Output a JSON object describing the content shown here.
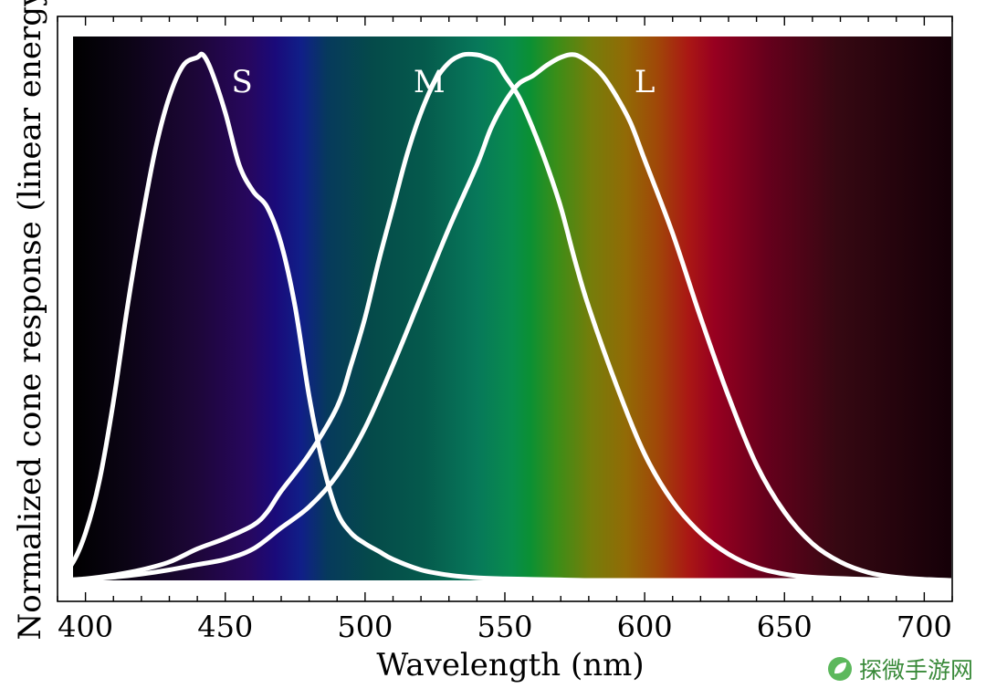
{
  "chart_data": {
    "type": "line",
    "title": "",
    "xlabel": "Wavelength (nm)",
    "ylabel": "Normalized cone response (linear energy)",
    "xlim": [
      390,
      710
    ],
    "ylim": [
      0,
      1
    ],
    "x_ticks": [
      400,
      450,
      500,
      550,
      600,
      650,
      700
    ],
    "x_tick_labels": [
      "400",
      "450",
      "500",
      "550",
      "600",
      "650",
      "700"
    ],
    "y_tick_labels": [],
    "grid": false,
    "legend": "none",
    "background": "visible spectrum gradient",
    "series": [
      {
        "name": "S",
        "label_position": {
          "x": 456,
          "y": 0.95
        },
        "x": [
          390,
          395,
          400,
          405,
          410,
          415,
          420,
          425,
          430,
          435,
          440,
          442,
          445,
          450,
          455,
          460,
          465,
          470,
          475,
          480,
          485,
          490,
          495,
          500,
          505,
          510,
          520,
          530,
          540,
          550,
          560,
          570,
          580,
          600,
          650,
          700,
          710
        ],
        "values": [
          0.01,
          0.03,
          0.09,
          0.19,
          0.34,
          0.52,
          0.68,
          0.82,
          0.92,
          0.98,
          0.995,
          1.0,
          0.97,
          0.89,
          0.79,
          0.74,
          0.71,
          0.64,
          0.52,
          0.35,
          0.22,
          0.13,
          0.09,
          0.07,
          0.055,
          0.04,
          0.02,
          0.01,
          0.005,
          0.003,
          0.002,
          0.001,
          0.0,
          0.0,
          0.0,
          0.0,
          0.0
        ]
      },
      {
        "name": "M",
        "label_position": {
          "x": 523,
          "y": 0.95
        },
        "x": [
          390,
          400,
          410,
          420,
          430,
          440,
          450,
          460,
          465,
          470,
          480,
          490,
          495,
          500,
          505,
          510,
          515,
          520,
          525,
          530,
          535,
          540,
          543,
          547,
          550,
          555,
          560,
          565,
          570,
          575,
          580,
          590,
          600,
          610,
          620,
          630,
          640,
          650,
          660,
          680,
          700,
          710
        ],
        "values": [
          0.0,
          0.003,
          0.01,
          0.02,
          0.035,
          0.06,
          0.08,
          0.105,
          0.13,
          0.17,
          0.24,
          0.33,
          0.41,
          0.5,
          0.61,
          0.71,
          0.81,
          0.89,
          0.95,
          0.985,
          1.0,
          1.0,
          0.995,
          0.985,
          0.96,
          0.92,
          0.86,
          0.79,
          0.71,
          0.61,
          0.52,
          0.37,
          0.24,
          0.15,
          0.09,
          0.05,
          0.025,
          0.012,
          0.006,
          0.002,
          0.001,
          0.0
        ]
      },
      {
        "name": "L",
        "label_position": {
          "x": 600,
          "y": 0.95
        },
        "x": [
          390,
          400,
          410,
          420,
          430,
          440,
          450,
          460,
          470,
          480,
          490,
          500,
          510,
          520,
          530,
          540,
          545,
          550,
          555,
          560,
          565,
          570,
          575,
          580,
          585,
          590,
          595,
          600,
          610,
          620,
          630,
          640,
          650,
          660,
          670,
          680,
          690,
          700,
          710
        ],
        "values": [
          0.0,
          0.002,
          0.006,
          0.012,
          0.02,
          0.03,
          0.04,
          0.06,
          0.1,
          0.14,
          0.2,
          0.29,
          0.41,
          0.54,
          0.67,
          0.79,
          0.86,
          0.91,
          0.945,
          0.96,
          0.98,
          0.995,
          1.0,
          0.985,
          0.96,
          0.92,
          0.87,
          0.8,
          0.66,
          0.5,
          0.35,
          0.22,
          0.13,
          0.07,
          0.035,
          0.015,
          0.006,
          0.002,
          0.0
        ]
      }
    ]
  },
  "watermark": {
    "text": "探微手游网"
  }
}
